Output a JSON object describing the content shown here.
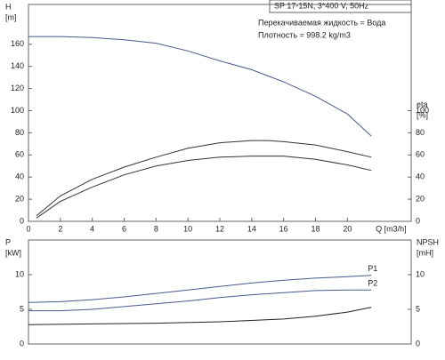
{
  "chart_data": [
    {
      "type": "line",
      "title": "SP 17-15N, 3*400 V, 50Hz",
      "notes": [
        "Перекачиваемая жидкость = Вода",
        "Плотность = 998.2 kg/m3"
      ],
      "ylabel": "H",
      "ylabel_unit": "[m]",
      "y2label": "eta",
      "y2label_unit": "[%]",
      "xlabel": "Q [m3/h]",
      "xlim": [
        0,
        24
      ],
      "xticks": [
        0,
        2,
        4,
        6,
        8,
        10,
        12,
        14,
        16,
        18,
        20
      ],
      "ylim": [
        0,
        196
      ],
      "yticks": [
        0,
        20,
        40,
        60,
        80,
        100,
        120,
        140,
        160
      ],
      "y2lim": [
        0,
        196
      ],
      "y2ticks": [
        0,
        20,
        40,
        60,
        80,
        100
      ],
      "series": [
        {
          "color": "#4a5a8c",
          "x": [
            0,
            2,
            4,
            6,
            8,
            10,
            12,
            14,
            16,
            18,
            20,
            21.5
          ],
          "values": [
            167,
            167,
            166,
            164,
            161,
            154,
            145,
            137,
            126,
            113,
            97,
            77
          ]
        },
        {
          "color": "#333333",
          "axis": "y2",
          "x": [
            0.5,
            2,
            4,
            6,
            8,
            10,
            12,
            14,
            15,
            16,
            18,
            20,
            21.5
          ],
          "values": [
            5,
            23,
            38,
            49,
            58,
            66,
            71,
            73,
            73,
            72,
            69,
            63,
            58
          ]
        },
        {
          "color": "#333333",
          "axis": "y2",
          "x": [
            0.5,
            2,
            4,
            6,
            8,
            10,
            12,
            14,
            15,
            16,
            18,
            20,
            21.5
          ],
          "values": [
            3,
            18,
            31,
            42,
            50,
            55,
            58,
            59,
            59,
            59,
            56,
            51,
            46
          ]
        }
      ]
    },
    {
      "type": "line",
      "ylabel": "P",
      "ylabel_unit": "[kW]",
      "y2label": "NPSH",
      "y2label_unit": "[mH]",
      "xlim": [
        0,
        24
      ],
      "ylim": [
        0,
        15
      ],
      "yticks": [
        0,
        5,
        10
      ],
      "y2lim": [
        0,
        15
      ],
      "y2ticks": [
        0,
        5,
        10
      ],
      "series": [
        {
          "name": "P1",
          "color": "#4a5a8c",
          "x": [
            0,
            2,
            4,
            6,
            8,
            10,
            12,
            14,
            16,
            18,
            20,
            21.5
          ],
          "values": [
            6.0,
            6.1,
            6.4,
            6.8,
            7.3,
            7.8,
            8.3,
            8.8,
            9.2,
            9.5,
            9.7,
            9.9
          ]
        },
        {
          "name": "P2",
          "color": "#4a5a8c",
          "x": [
            0,
            2,
            4,
            6,
            8,
            10,
            12,
            14,
            16,
            18,
            20,
            21.5
          ],
          "values": [
            4.8,
            4.8,
            5.0,
            5.4,
            5.8,
            6.2,
            6.7,
            7.1,
            7.4,
            7.7,
            7.8,
            7.8
          ]
        },
        {
          "color": "#222222",
          "axis": "y2",
          "x": [
            0,
            4,
            8,
            12,
            16,
            18,
            20,
            21.5
          ],
          "values": [
            2.8,
            2.9,
            3.0,
            3.2,
            3.6,
            4.0,
            4.6,
            5.3
          ]
        }
      ]
    }
  ]
}
